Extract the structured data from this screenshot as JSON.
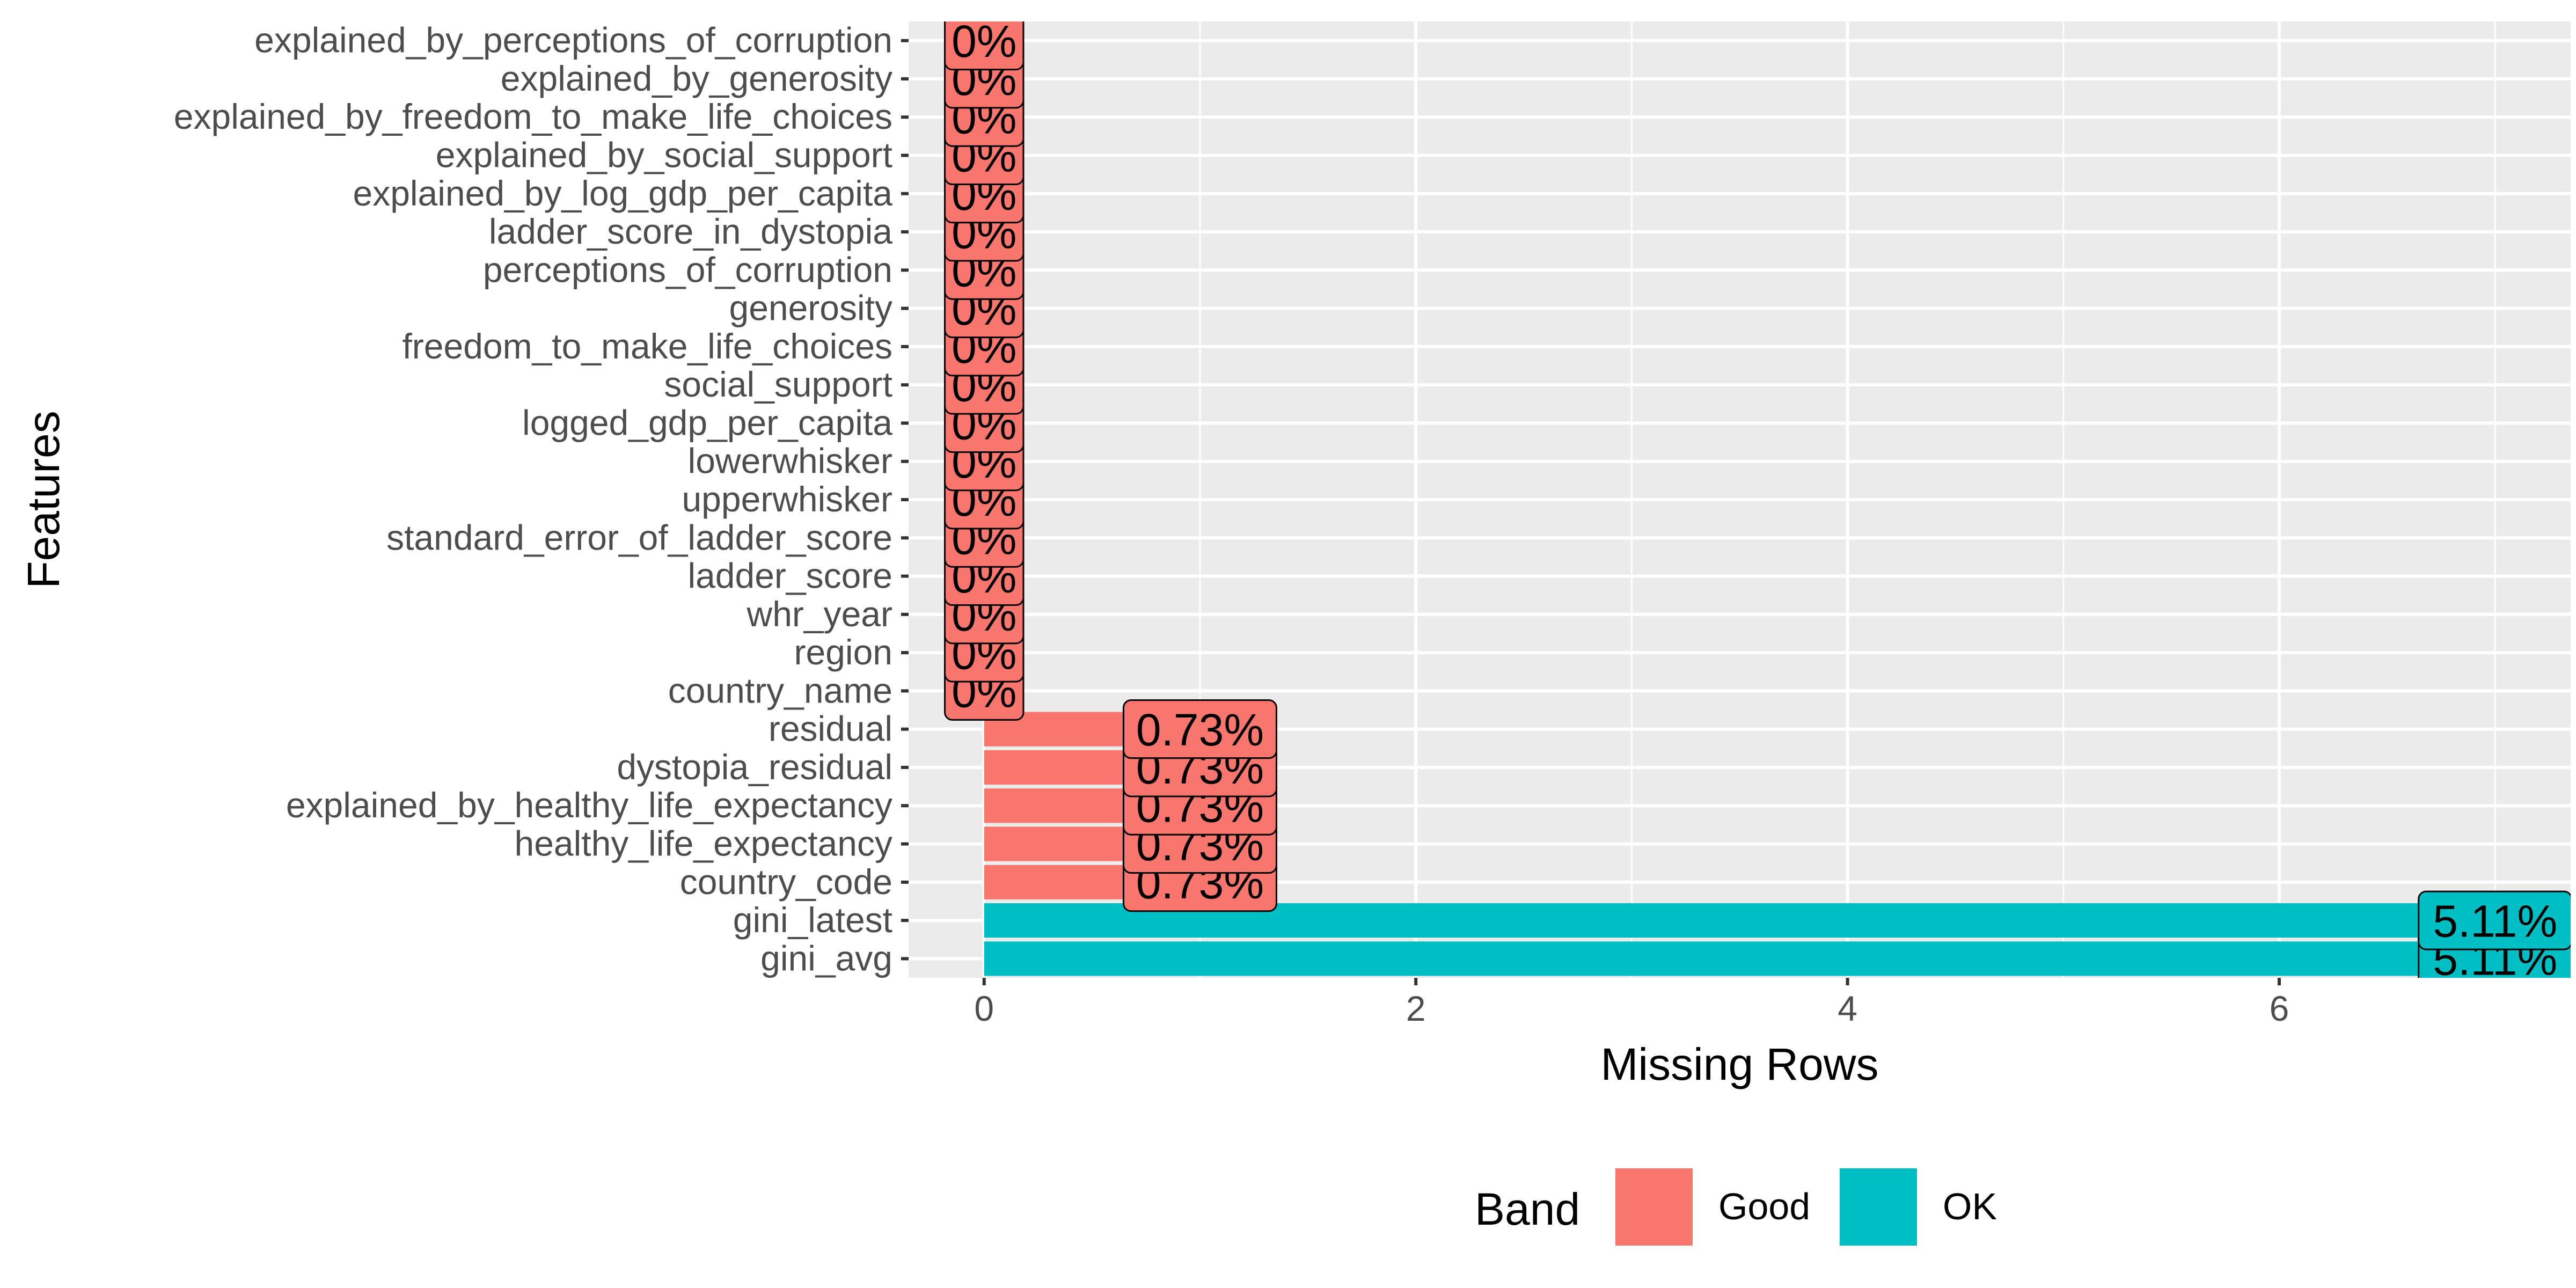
{
  "chart_data": {
    "type": "bar",
    "orientation": "horizontal",
    "xlabel": "Missing Rows",
    "ylabel": "Features",
    "xlim": [
      -0.35,
      7.35
    ],
    "xticks": [
      0,
      2,
      4,
      6
    ],
    "xtick_labels": [
      "0",
      "2",
      "4",
      "6"
    ],
    "grid": true,
    "legend_position": "bottom",
    "legend": {
      "title": "Band",
      "entries": [
        {
          "label": "Good",
          "color": "#F8766D"
        },
        {
          "label": "OK",
          "color": "#00BFC4"
        }
      ]
    },
    "bars": [
      {
        "feature": "explained_by_perceptions_of_corruption",
        "value": 0,
        "label": "0%",
        "band": "Good"
      },
      {
        "feature": "explained_by_generosity",
        "value": 0,
        "label": "0%",
        "band": "Good"
      },
      {
        "feature": "explained_by_freedom_to_make_life_choices",
        "value": 0,
        "label": "0%",
        "band": "Good"
      },
      {
        "feature": "explained_by_social_support",
        "value": 0,
        "label": "0%",
        "band": "Good"
      },
      {
        "feature": "explained_by_log_gdp_per_capita",
        "value": 0,
        "label": "0%",
        "band": "Good"
      },
      {
        "feature": "ladder_score_in_dystopia",
        "value": 0,
        "label": "0%",
        "band": "Good"
      },
      {
        "feature": "perceptions_of_corruption",
        "value": 0,
        "label": "0%",
        "band": "Good"
      },
      {
        "feature": "generosity",
        "value": 0,
        "label": "0%",
        "band": "Good"
      },
      {
        "feature": "freedom_to_make_life_choices",
        "value": 0,
        "label": "0%",
        "band": "Good"
      },
      {
        "feature": "social_support",
        "value": 0,
        "label": "0%",
        "band": "Good"
      },
      {
        "feature": "logged_gdp_per_capita",
        "value": 0,
        "label": "0%",
        "band": "Good"
      },
      {
        "feature": "lowerwhisker",
        "value": 0,
        "label": "0%",
        "band": "Good"
      },
      {
        "feature": "upperwhisker",
        "value": 0,
        "label": "0%",
        "band": "Good"
      },
      {
        "feature": "standard_error_of_ladder_score",
        "value": 0,
        "label": "0%",
        "band": "Good"
      },
      {
        "feature": "ladder_score",
        "value": 0,
        "label": "0%",
        "band": "Good"
      },
      {
        "feature": "whr_year",
        "value": 0,
        "label": "0%",
        "band": "Good"
      },
      {
        "feature": "region",
        "value": 0,
        "label": "0%",
        "band": "Good"
      },
      {
        "feature": "country_name",
        "value": 0,
        "label": "0%",
        "band": "Good"
      },
      {
        "feature": "residual",
        "value": 1,
        "label": "0.73%",
        "band": "Good"
      },
      {
        "feature": "dystopia_residual",
        "value": 1,
        "label": "0.73%",
        "band": "Good"
      },
      {
        "feature": "explained_by_healthy_life_expectancy",
        "value": 1,
        "label": "0.73%",
        "band": "Good"
      },
      {
        "feature": "healthy_life_expectancy",
        "value": 1,
        "label": "0.73%",
        "band": "Good"
      },
      {
        "feature": "country_code",
        "value": 1,
        "label": "0.73%",
        "band": "Good"
      },
      {
        "feature": "gini_latest",
        "value": 7,
        "label": "5.11%",
        "band": "OK"
      },
      {
        "feature": "gini_avg",
        "value": 7,
        "label": "5.11%",
        "band": "OK"
      }
    ]
  }
}
